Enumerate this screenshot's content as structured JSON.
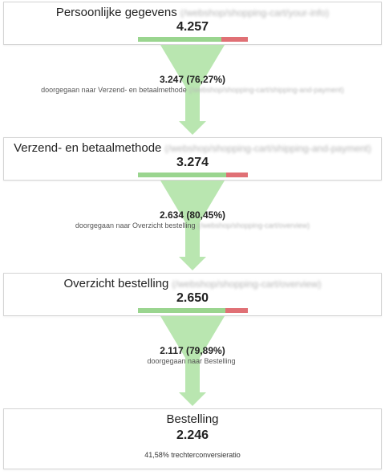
{
  "steps": [
    {
      "title": "Persoonlijke gegevens",
      "url": "(/webshop/shopping-cart/your-info)",
      "count": "4.257",
      "proceed_fraction": 0.7627
    },
    {
      "title": "Verzend- en betaalmethode",
      "url": "(/webshop/shopping-cart/shipping-and-payment)",
      "count": "3.274",
      "proceed_fraction": 0.8045
    },
    {
      "title": "Overzicht bestelling",
      "url": "(/webshop/shopping-cart/overview)",
      "count": "2.650",
      "proceed_fraction": 0.7989
    },
    {
      "title": "Bestelling",
      "count": "2.246",
      "conversion": "41,58% trechterconversieratio"
    }
  ],
  "transitions": [
    {
      "value": "3.247 (76,27%)",
      "text": "doorgegaan naar Verzend- en betaalmethode",
      "url": "(/webshop/shopping-cart/shipping-and-payment)"
    },
    {
      "value": "2.634 (80,45%)",
      "text": "doorgegaan naar Overzicht bestelling",
      "url": "(/webshop/shopping-cart/overview)"
    },
    {
      "value": "2.117 (79,89%)",
      "text": "doorgegaan naar Bestelling",
      "url": ""
    }
  ],
  "colors": {
    "proceed": "#9ad58f",
    "dropoff": "#e07075",
    "funnel": "#b9e6b0"
  }
}
